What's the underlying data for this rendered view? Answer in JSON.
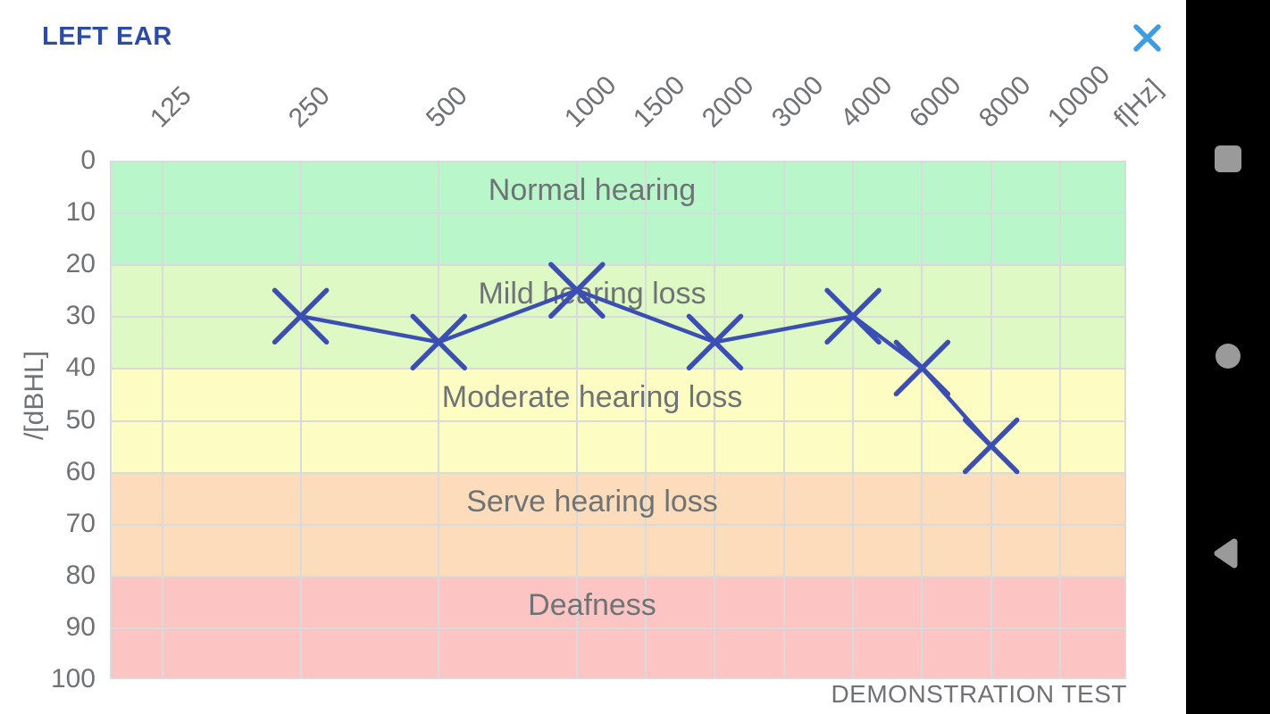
{
  "header": {
    "title": "LEFT EAR"
  },
  "chart_data": {
    "type": "line",
    "title": "LEFT EAR",
    "x_axis": {
      "label": "f[Hz]",
      "ticks": [
        125,
        250,
        500,
        1000,
        1500,
        2000,
        3000,
        4000,
        6000,
        8000,
        10000
      ]
    },
    "y_axis": {
      "label": "/[dBHL]",
      "ticks": [
        0,
        10,
        20,
        30,
        40,
        50,
        60,
        70,
        80,
        90,
        100
      ],
      "range": [
        0,
        100
      ],
      "direction": "down"
    },
    "grid": true,
    "bands": [
      {
        "label": "Normal hearing",
        "from": 0,
        "to": 20,
        "color": "#b9f6ca"
      },
      {
        "label": "Mild hearing loss",
        "from": 20,
        "to": 40,
        "color": "#def9c3"
      },
      {
        "label": "Moderate hearing loss",
        "from": 40,
        "to": 60,
        "color": "#fdfdc3"
      },
      {
        "label": "Serve hearing loss",
        "from": 60,
        "to": 80,
        "color": "#fcdcba"
      },
      {
        "label": "Deafness",
        "from": 80,
        "to": 100,
        "color": "#fcc4c3"
      }
    ],
    "series": [
      {
        "name": "LEFT EAR",
        "marker": "x",
        "color": "#3b4eb3",
        "points": [
          {
            "hz": 250,
            "dbhl": 30
          },
          {
            "hz": 500,
            "dbhl": 35
          },
          {
            "hz": 1000,
            "dbhl": 25
          },
          {
            "hz": 2000,
            "dbhl": 35
          },
          {
            "hz": 4000,
            "dbhl": 30
          },
          {
            "hz": 6000,
            "dbhl": 40
          },
          {
            "hz": 8000,
            "dbhl": 55
          }
        ]
      }
    ],
    "annotation": "DEMONSTRATION TEST"
  },
  "colors": {
    "title": "#2c4aa8",
    "close_icon": "#3d9de2",
    "gridline": "#d8dadb",
    "axis_text": "#6e7276",
    "band_text": "#6e7376",
    "nav_icon": "#9a9a9a",
    "navbar_bg": "#000000"
  },
  "android_nav": {
    "recents_icon": "square",
    "home_icon": "circle",
    "back_icon": "triangle-left"
  }
}
